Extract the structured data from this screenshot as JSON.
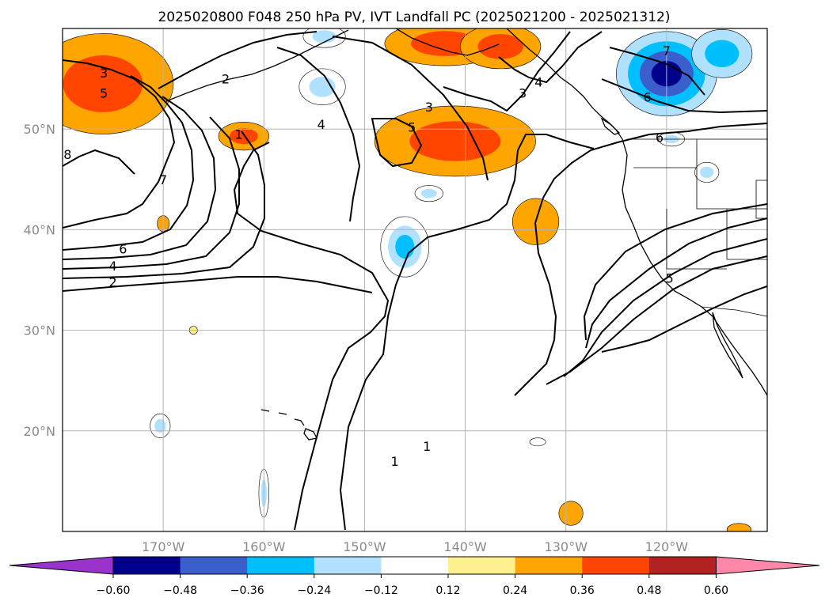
{
  "title": "2025020800 F048 250 hPa PV, IVT Landfall PC (2025021200 - 2025021312)",
  "map": {
    "lon_range": [
      -180,
      -110
    ],
    "lat_range": [
      10,
      60
    ],
    "lon_ticks": [
      {
        "lon": -170,
        "label": "170°W"
      },
      {
        "lon": -160,
        "label": "160°W"
      },
      {
        "lon": -150,
        "label": "150°W"
      },
      {
        "lon": -140,
        "label": "140°W"
      },
      {
        "lon": -130,
        "label": "130°W"
      },
      {
        "lon": -120,
        "label": "120°W"
      }
    ],
    "lat_ticks": [
      {
        "lat": 50,
        "label": "50°N"
      },
      {
        "lat": 40,
        "label": "40°N"
      },
      {
        "lat": 30,
        "label": "30°N"
      },
      {
        "lat": 20,
        "label": "20°N"
      }
    ],
    "grid": true
  },
  "colorbar": {
    "orientation": "horizontal",
    "extend": "both",
    "colors": [
      "#9933cc",
      "#00008b",
      "#3a5fcd",
      "#00bfff",
      "#b0e2ff",
      "#ffffff",
      "#fff08f",
      "#ffa500",
      "#ff4500",
      "#b22222",
      "#ff88aa"
    ],
    "tick_labels": [
      "−0.60",
      "−0.48",
      "−0.36",
      "−0.24",
      "−0.12",
      "0.12",
      "0.24",
      "0.36",
      "0.48",
      "0.60"
    ]
  },
  "pv_contours": {
    "color": "#000000",
    "labels": [
      {
        "text": "1",
        "lon": -147,
        "lat": 17
      },
      {
        "text": "1",
        "lon": -143.8,
        "lat": 18.5
      },
      {
        "text": "1",
        "lon": -162.5,
        "lat": 49.5
      },
      {
        "text": "2",
        "lon": -175,
        "lat": 34.8
      },
      {
        "text": "4",
        "lon": -175,
        "lat": 36.4
      },
      {
        "text": "6",
        "lon": -174,
        "lat": 38.1
      },
      {
        "text": "7",
        "lon": -170,
        "lat": 45
      },
      {
        "text": "8",
        "lon": -179.5,
        "lat": 47.5
      },
      {
        "text": "3",
        "lon": -175.9,
        "lat": 55.6
      },
      {
        "text": "5",
        "lon": -175.9,
        "lat": 53.6
      },
      {
        "text": "2",
        "lon": -163.8,
        "lat": 55
      },
      {
        "text": "4",
        "lon": -154.3,
        "lat": 50.5
      },
      {
        "text": "5",
        "lon": -145.3,
        "lat": 50.2
      },
      {
        "text": "3",
        "lon": -143.6,
        "lat": 52.2
      },
      {
        "text": "3",
        "lon": -134.3,
        "lat": 53.6
      },
      {
        "text": "4",
        "lon": -132.7,
        "lat": 54.7
      },
      {
        "text": "7",
        "lon": -120,
        "lat": 57.8
      },
      {
        "text": "6",
        "lon": -121.9,
        "lat": 53.2
      },
      {
        "text": "6",
        "lon": -120.7,
        "lat": 49.2
      },
      {
        "text": "5",
        "lon": -119.7,
        "lat": 35.2
      }
    ]
  },
  "ivt_shading": [
    {
      "lon": -176,
      "lat": 54.5,
      "rx": 7,
      "ry": 5,
      "levels": [
        0.24,
        0.36
      ]
    },
    {
      "lon": -141,
      "lat": 48.8,
      "rx": 8,
      "ry": 3.5,
      "levels": [
        0.24,
        0.36
      ]
    },
    {
      "lon": -142,
      "lat": 58.5,
      "rx": 6,
      "ry": 2.2,
      "levels": [
        0.24,
        0.36
      ]
    },
    {
      "lon": -136.5,
      "lat": 58.2,
      "rx": 4,
      "ry": 2.2,
      "levels": [
        0.24,
        0.36
      ]
    },
    {
      "lon": -162,
      "lat": 49.3,
      "rx": 2.5,
      "ry": 1.4,
      "levels": [
        0.24,
        0.36
      ]
    },
    {
      "lon": -133,
      "lat": 40.8,
      "rx": 2.3,
      "ry": 2.3,
      "levels": [
        0.24
      ]
    },
    {
      "lon": -170,
      "lat": 40.6,
      "rx": 0.6,
      "ry": 0.8,
      "levels": [
        0.24
      ]
    },
    {
      "lon": -167,
      "lat": 30,
      "rx": 0.4,
      "ry": 0.4,
      "levels": [
        0.12
      ]
    },
    {
      "lon": -129.5,
      "lat": 11.8,
      "rx": 1.2,
      "ry": 1.2,
      "levels": [
        0.24
      ]
    },
    {
      "lon": -112.8,
      "lat": 10.2,
      "rx": 1.2,
      "ry": 0.6,
      "levels": [
        0.24
      ]
    },
    {
      "lon": -120,
      "lat": 55.5,
      "rx": 5,
      "ry": 4.2,
      "levels": [
        -0.24,
        -0.36,
        -0.48,
        -0.6
      ]
    },
    {
      "lon": -114.5,
      "lat": 57.5,
      "rx": 3,
      "ry": 2.4,
      "levels": [
        -0.24,
        -0.36
      ]
    },
    {
      "lon": -146,
      "lat": 38.3,
      "rx": 2.4,
      "ry": 3,
      "levels": [
        -0.12,
        -0.24,
        -0.36
      ]
    },
    {
      "lon": -154.2,
      "lat": 54.2,
      "rx": 2.3,
      "ry": 1.8,
      "levels": [
        -0.12,
        -0.24
      ]
    },
    {
      "lon": -154,
      "lat": 59.2,
      "rx": 2.1,
      "ry": 1.1,
      "levels": [
        -0.12,
        -0.24
      ]
    },
    {
      "lon": -143.6,
      "lat": 43.6,
      "rx": 1.4,
      "ry": 0.8,
      "levels": [
        -0.12,
        -0.24
      ]
    },
    {
      "lon": -116,
      "lat": 45.7,
      "rx": 1.2,
      "ry": 1,
      "levels": [
        -0.12,
        -0.24
      ]
    },
    {
      "lon": -170.3,
      "lat": 20.5,
      "rx": 1,
      "ry": 1.2,
      "levels": [
        -0.12,
        -0.24
      ]
    },
    {
      "lon": -160,
      "lat": 13.8,
      "rx": 0.5,
      "ry": 2.4,
      "levels": [
        -0.12,
        -0.24
      ]
    },
    {
      "lon": -132.8,
      "lat": 18.9,
      "rx": 0.8,
      "ry": 0.4,
      "levels": [
        -0.12
      ]
    },
    {
      "lon": -119.5,
      "lat": 49,
      "rx": 1.3,
      "ry": 0.7,
      "levels": [
        -0.12,
        -0.24
      ]
    }
  ]
}
